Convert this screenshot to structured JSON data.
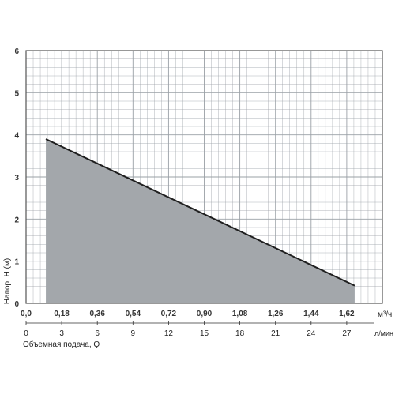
{
  "chart_data": {
    "type": "area",
    "ylabel": "Напор, Н (м)",
    "xlabel": "Объемная подача, Q",
    "x_unit_primary": "м³/ч",
    "x_unit_secondary": "л/мин",
    "ylim": [
      0,
      6
    ],
    "xlim": [
      0,
      1.8
    ],
    "grid": true,
    "y_ticks": [
      "0",
      "1",
      "2",
      "3",
      "4",
      "5",
      "6"
    ],
    "x_ticks_primary": [
      "0,0",
      "0,18",
      "0,36",
      "0,54",
      "0,72",
      "0,90",
      "1,08",
      "1,26",
      "1,44",
      "1,62"
    ],
    "x_ticks_secondary": [
      "0",
      "3",
      "6",
      "9",
      "12",
      "15",
      "18",
      "21",
      "24",
      "27"
    ],
    "series": [
      {
        "x": [
          0.1,
          1.66
        ],
        "y": [
          3.9,
          0.42
        ]
      }
    ],
    "colors": {
      "fill": "#a3a7ab",
      "line": "#1f1f1f",
      "grid": "#9aa0a6"
    }
  }
}
